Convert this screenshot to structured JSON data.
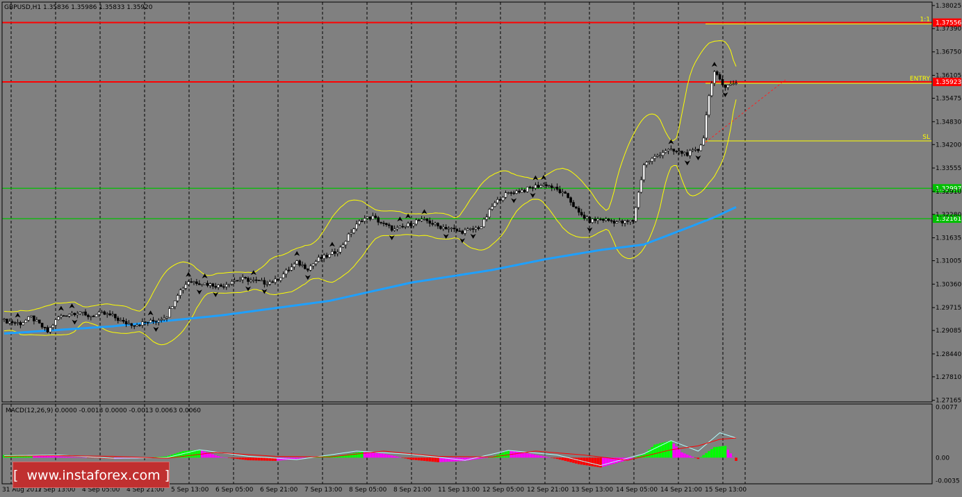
{
  "header": {
    "symbol_info": "GBPUSD,H1  1.35836 1.35986 1.35833 1.35920",
    "macd_info": "MACD(12,26,9) 0.0000 -0.0013 0.0000 -0.0013 0.0063 0.0060"
  },
  "watermark": {
    "text": "[  www.instaforex.com ]"
  },
  "colors": {
    "background": "#808080",
    "resistance": "#ff0000",
    "support": "#00c000",
    "ma_line": "#1ea0ff",
    "bands": "#ffff00",
    "macd_pos": "#00ff00",
    "macd_neg": "#ff0000",
    "macd_pos_fade": "#ff00ff",
    "macd_neg_fade": "#ff00ff",
    "macd_line": "#b0ffff",
    "signal_line": "#ff0000"
  },
  "chart_data": {
    "type": "candlestick",
    "symbol": "GBPUSD",
    "timeframe": "H1",
    "y_ticks": [
      "1.38025",
      "1.37390",
      "1.36750",
      "1.36105",
      "1.35475",
      "1.34830",
      "1.34200",
      "1.33555",
      "1.32910",
      "1.32280",
      "1.31635",
      "1.31005",
      "1.30360",
      "1.29715",
      "1.29085",
      "1.28440",
      "1.27810",
      "1.27165"
    ],
    "ylim": [
      1.2712,
      1.3812
    ],
    "x_ticks": [
      "31 Aug 2017",
      "1 Sep 13:00",
      "4 Sep 05:00",
      "4 Sep 21:00",
      "5 Sep 13:00",
      "6 Sep 05:00",
      "6 Sep 21:00",
      "7 Sep 13:00",
      "8 Sep 05:00",
      "8 Sep 21:00",
      "11 Sep 13:00",
      "12 Sep 05:00",
      "12 Sep 21:00",
      "13 Sep 13:00",
      "14 Sep 05:00",
      "14 Sep 21:00",
      "15 Sep 13:00"
    ],
    "levels": [
      {
        "price": 1.37556,
        "label": "1.37556",
        "tag": "1:1",
        "kind": "resistance"
      },
      {
        "price": 1.35923,
        "label": "1.35923",
        "tag": "ENTRY",
        "kind": "resistance"
      },
      {
        "price": 1.32997,
        "label": "1.32997",
        "tag": "",
        "kind": "support"
      },
      {
        "price": 1.32161,
        "label": "1.32161",
        "tag": "",
        "kind": "support"
      }
    ],
    "sl_level": {
      "price": 1.343,
      "tag": "SL"
    },
    "price_path": [
      [
        0,
        1.2935
      ],
      [
        6,
        1.2928
      ],
      [
        10,
        1.2945
      ],
      [
        16,
        1.2905
      ],
      [
        20,
        1.2945
      ],
      [
        24,
        1.2955
      ],
      [
        28,
        1.296
      ],
      [
        30,
        1.2948
      ],
      [
        33,
        1.295
      ],
      [
        36,
        1.2955
      ],
      [
        40,
        1.2948
      ],
      [
        44,
        1.293
      ],
      [
        48,
        1.2925
      ],
      [
        52,
        1.293
      ],
      [
        56,
        1.2935
      ],
      [
        60,
        1.295
      ],
      [
        64,
        1.301
      ],
      [
        68,
        1.3045
      ],
      [
        72,
        1.304
      ],
      [
        76,
        1.3035
      ],
      [
        80,
        1.303
      ],
      [
        84,
        1.3045
      ],
      [
        88,
        1.305
      ],
      [
        92,
        1.3045
      ],
      [
        96,
        1.304
      ],
      [
        100,
        1.3045
      ],
      [
        104,
        1.307
      ],
      [
        108,
        1.3095
      ],
      [
        112,
        1.308
      ],
      [
        116,
        1.3105
      ],
      [
        120,
        1.3115
      ],
      [
        124,
        1.3135
      ],
      [
        128,
        1.318
      ],
      [
        132,
        1.3215
      ],
      [
        136,
        1.322
      ],
      [
        140,
        1.32
      ],
      [
        144,
        1.3185
      ],
      [
        148,
        1.3195
      ],
      [
        152,
        1.321
      ],
      [
        156,
        1.321
      ],
      [
        160,
        1.3195
      ],
      [
        164,
        1.319
      ],
      [
        168,
        1.318
      ],
      [
        172,
        1.3185
      ],
      [
        176,
        1.3195
      ],
      [
        180,
        1.325
      ],
      [
        184,
        1.328
      ],
      [
        188,
        1.329
      ],
      [
        192,
        1.3295
      ],
      [
        196,
        1.3305
      ],
      [
        200,
        1.331
      ],
      [
        204,
        1.3295
      ],
      [
        208,
        1.3275
      ],
      [
        212,
        1.323
      ],
      [
        216,
        1.321
      ],
      [
        220,
        1.3215
      ],
      [
        224,
        1.321
      ],
      [
        228,
        1.3205
      ],
      [
        232,
        1.321
      ],
      [
        236,
        1.3365
      ],
      [
        240,
        1.3385
      ],
      [
        244,
        1.3405
      ],
      [
        248,
        1.34
      ],
      [
        252,
        1.3395
      ],
      [
        256,
        1.3405
      ],
      [
        258,
        1.344
      ],
      [
        260,
        1.356
      ],
      [
        262,
        1.3615
      ],
      [
        264,
        1.36
      ],
      [
        266,
        1.358
      ],
      [
        268,
        1.3585
      ],
      [
        270,
        1.3592
      ]
    ],
    "ma_path": [
      [
        0,
        1.29
      ],
      [
        40,
        1.292
      ],
      [
        80,
        1.295
      ],
      [
        120,
        1.299
      ],
      [
        150,
        1.304
      ],
      [
        180,
        1.3075
      ],
      [
        200,
        1.3105
      ],
      [
        220,
        1.313
      ],
      [
        236,
        1.3145
      ],
      [
        250,
        1.3185
      ],
      [
        262,
        1.322
      ],
      [
        270,
        1.3248
      ]
    ],
    "macd": {
      "y_ticks": [
        "0.0077",
        "0.00",
        "-0.0035"
      ],
      "ylim": [
        -0.004,
        0.0082
      ],
      "hist_path": [
        [
          0,
          0.0004
        ],
        [
          10,
          0.0004
        ],
        [
          20,
          0.0002
        ],
        [
          30,
          0.0
        ],
        [
          40,
          -0.0002
        ],
        [
          50,
          -0.0001
        ],
        [
          60,
          0.0002
        ],
        [
          66,
          0.001
        ],
        [
          72,
          0.0012
        ],
        [
          80,
          0.0001
        ],
        [
          90,
          -0.0004
        ],
        [
          100,
          -0.0005
        ],
        [
          108,
          -0.0002
        ],
        [
          116,
          0.0002
        ],
        [
          124,
          0.0003
        ],
        [
          132,
          0.0009
        ],
        [
          140,
          0.0006
        ],
        [
          150,
          -0.0003
        ],
        [
          160,
          -0.0007
        ],
        [
          170,
          -0.0005
        ],
        [
          180,
          0.0001
        ],
        [
          186,
          0.0011
        ],
        [
          194,
          0.0006
        ],
        [
          204,
          -0.0002
        ],
        [
          212,
          -0.001
        ],
        [
          220,
          -0.0015
        ],
        [
          228,
          -0.0006
        ],
        [
          236,
          0.0005
        ],
        [
          240,
          0.002
        ],
        [
          246,
          0.0026
        ],
        [
          250,
          0.0008
        ],
        [
          256,
          -0.0002
        ],
        [
          262,
          0.0016
        ],
        [
          266,
          0.0018
        ],
        [
          270,
          -0.0005
        ]
      ],
      "macd_path": [
        [
          0,
          0.0003
        ],
        [
          20,
          0.0004
        ],
        [
          40,
          -0.0001
        ],
        [
          60,
          0.0
        ],
        [
          72,
          0.0012
        ],
        [
          90,
          0.0002
        ],
        [
          108,
          -0.0003
        ],
        [
          130,
          0.001
        ],
        [
          150,
          0.0005
        ],
        [
          170,
          -0.0004
        ],
        [
          186,
          0.0011
        ],
        [
          204,
          0.0004
        ],
        [
          220,
          -0.0012
        ],
        [
          236,
          0.0006
        ],
        [
          246,
          0.0026
        ],
        [
          256,
          0.001
        ],
        [
          264,
          0.0038
        ],
        [
          270,
          0.003
        ]
      ],
      "signal_path": [
        [
          0,
          0.0002
        ],
        [
          20,
          0.0003
        ],
        [
          40,
          0.0002
        ],
        [
          60,
          -0.0001
        ],
        [
          78,
          0.0008
        ],
        [
          100,
          0.0002
        ],
        [
          120,
          0.0001
        ],
        [
          140,
          0.001
        ],
        [
          160,
          0.0002
        ],
        [
          180,
          0.0001
        ],
        [
          196,
          0.001
        ],
        [
          214,
          0.0004
        ],
        [
          230,
          -0.0004
        ],
        [
          246,
          0.0012
        ],
        [
          256,
          0.0018
        ],
        [
          264,
          0.0028
        ],
        [
          270,
          0.003
        ]
      ]
    }
  }
}
